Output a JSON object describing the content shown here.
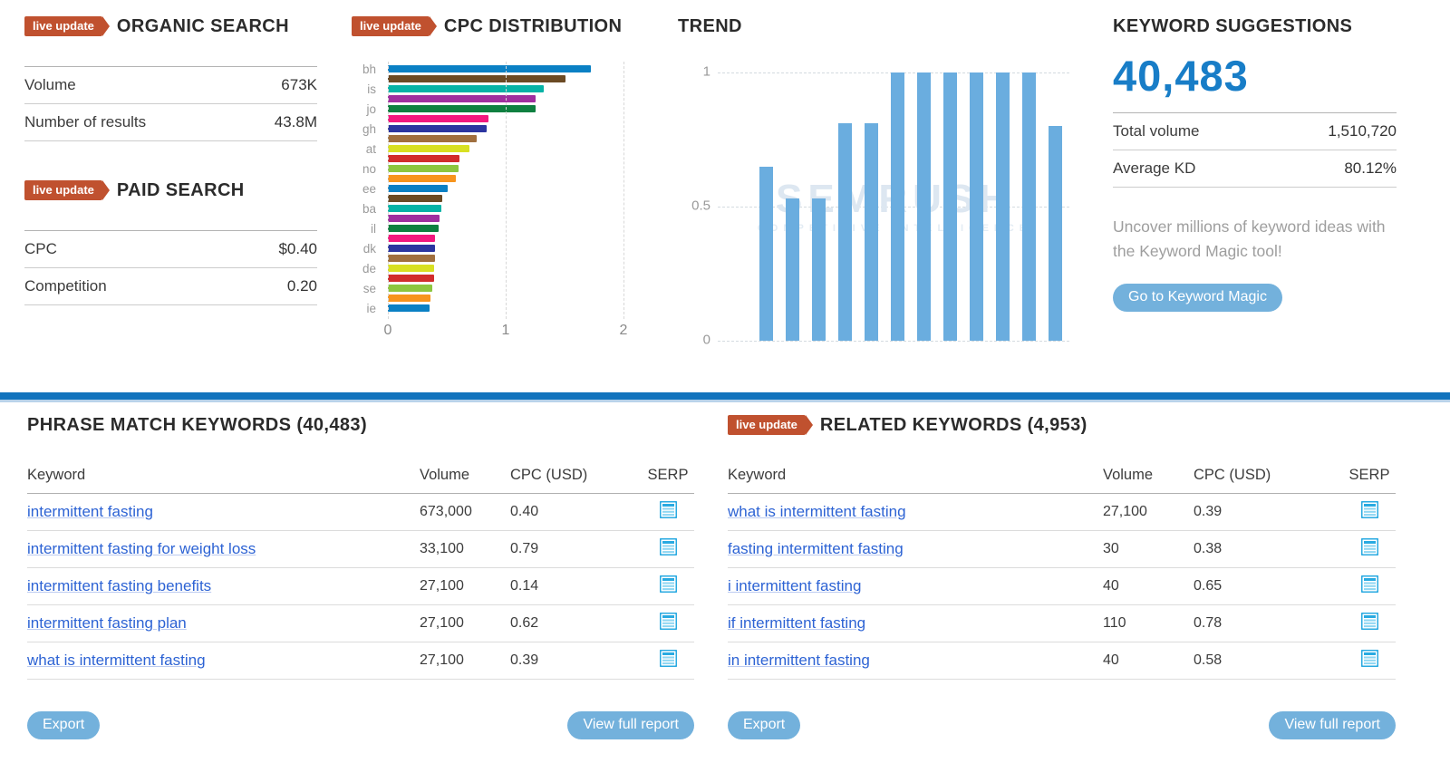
{
  "colors": {
    "accent_orange": "#c0512f",
    "brand_blue": "#187dc7",
    "divider_blue": "#1273bd",
    "button_blue": "#73b1dc",
    "link_blue": "#2d63d4",
    "trend_bar": "#6aaddf",
    "serp_icon": "#29aae1"
  },
  "organic_search": {
    "badge": "live update",
    "title": "ORGANIC SEARCH",
    "rows": [
      {
        "label": "Volume",
        "value": "673K"
      },
      {
        "label": "Number of results",
        "value": "43.8M"
      }
    ]
  },
  "paid_search": {
    "badge": "live update",
    "title": "PAID SEARCH",
    "rows": [
      {
        "label": "CPC",
        "value": "$0.40"
      },
      {
        "label": "Competition",
        "value": "0.20"
      }
    ]
  },
  "chart_data": [
    {
      "type": "bar",
      "orientation": "horizontal",
      "title": "CPC DISTRIBUTION",
      "badge": "live update",
      "categories": [
        "bh",
        "",
        "is",
        "",
        "jo",
        "",
        "gh",
        "",
        "at",
        "",
        "no",
        "",
        "ee",
        "",
        "ba",
        "",
        "il",
        "",
        "dk",
        "",
        "de",
        "",
        "se",
        "",
        "ie"
      ],
      "values": [
        1.72,
        1.51,
        1.32,
        1.25,
        1.25,
        0.85,
        0.84,
        0.75,
        0.69,
        0.61,
        0.6,
        0.58,
        0.51,
        0.46,
        0.45,
        0.44,
        0.43,
        0.4,
        0.4,
        0.4,
        0.39,
        0.39,
        0.38,
        0.36,
        0.35
      ],
      "bar_colors": [
        "#0a80c4",
        "#6b4a24",
        "#06b3a6",
        "#a02f9f",
        "#0e8040",
        "#f2197e",
        "#2b35a0",
        "#a06f3e",
        "#d8e022",
        "#d22c2c",
        "#8dc63f",
        "#f7941d"
      ],
      "xticks": [
        "0",
        "1",
        "2"
      ],
      "xlim": [
        0,
        2
      ],
      "grid": "dashed-vertical",
      "legend": "none"
    },
    {
      "type": "bar",
      "orientation": "vertical",
      "title": "TREND",
      "values": [
        0.65,
        0.53,
        0.53,
        0.81,
        0.81,
        1,
        1,
        1,
        1,
        1,
        1,
        0.8
      ],
      "yticks": [
        "1",
        "0.5",
        "0"
      ],
      "ylim": [
        0,
        1
      ],
      "grid": "dashed-horizontal",
      "legend": "none",
      "bar_color": "#6aaddf"
    }
  ],
  "keyword_suggestions": {
    "title": "KEYWORD SUGGESTIONS",
    "total_count": "40,483",
    "rows": [
      {
        "label": "Total volume",
        "value": "1,510,720"
      },
      {
        "label": "Average KD",
        "value": "80.12%"
      }
    ],
    "promo": "Uncover millions of keyword ideas with the Keyword Magic tool!",
    "button_label": "Go to Keyword Magic"
  },
  "phrase_match": {
    "title": "PHRASE MATCH KEYWORDS (40,483)",
    "columns": [
      "Keyword",
      "Volume",
      "CPC (USD)",
      "SERP"
    ],
    "rows": [
      {
        "keyword": "intermittent fasting",
        "volume": "673,000",
        "cpc": "0.40"
      },
      {
        "keyword": "intermittent fasting for weight loss",
        "volume": "33,100",
        "cpc": "0.79"
      },
      {
        "keyword": "intermittent fasting benefits",
        "volume": "27,100",
        "cpc": "0.14"
      },
      {
        "keyword": "intermittent fasting plan",
        "volume": "27,100",
        "cpc": "0.62"
      },
      {
        "keyword": "what is intermittent fasting",
        "volume": "27,100",
        "cpc": "0.39"
      }
    ],
    "export_label": "Export",
    "view_report_label": "View full report"
  },
  "related_keywords": {
    "badge": "live update",
    "title": "RELATED KEYWORDS (4,953)",
    "columns": [
      "Keyword",
      "Volume",
      "CPC (USD)",
      "SERP"
    ],
    "rows": [
      {
        "keyword": "what is intermittent fasting",
        "volume": "27,100",
        "cpc": "0.39"
      },
      {
        "keyword": "fasting intermittent fasting",
        "volume": "30",
        "cpc": "0.38"
      },
      {
        "keyword": "i intermittent fasting",
        "volume": "40",
        "cpc": "0.65"
      },
      {
        "keyword": "if intermittent fasting",
        "volume": "110",
        "cpc": "0.78"
      },
      {
        "keyword": "in intermittent fasting",
        "volume": "40",
        "cpc": "0.58"
      }
    ],
    "export_label": "Export",
    "view_report_label": "View full report"
  },
  "watermark": {
    "line1": "SEMRUSH",
    "line2": "COMPETITIVE INTELLIGENCE"
  }
}
